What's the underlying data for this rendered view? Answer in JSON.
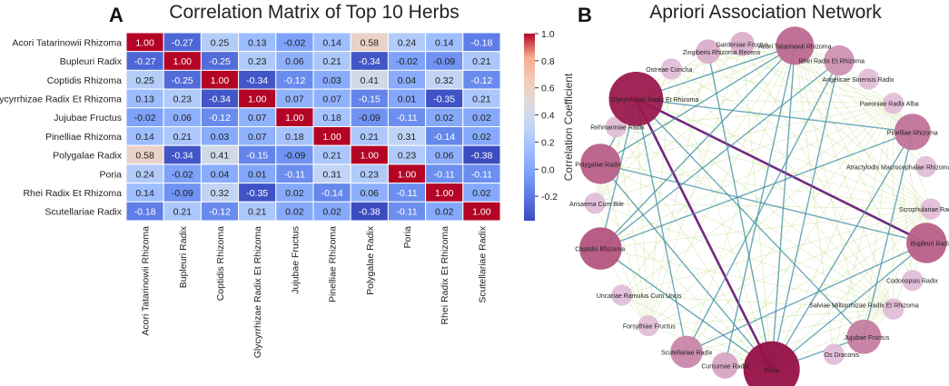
{
  "panel_a": {
    "letter": "A",
    "chart_data": {
      "type": "heatmap",
      "title": "Correlation Matrix of Top 10 Herbs",
      "labels": [
        "Acori Tatarinowii Rhizoma",
        "Bupleuri Radix",
        "Coptidis Rhizoma",
        "Glycyrrhizae Radix Et Rhizoma",
        "Jujubae Fructus",
        "Pinelliae Rhizoma",
        "Polygalae Radix",
        "Poria",
        "Rhei Radix Et Rhizoma",
        "Scutellariae Radix"
      ],
      "values": [
        [
          1.0,
          -0.27,
          0.25,
          0.13,
          -0.02,
          0.14,
          0.58,
          0.24,
          0.14,
          -0.18
        ],
        [
          -0.27,
          1.0,
          -0.25,
          0.23,
          0.06,
          0.21,
          -0.34,
          -0.02,
          -0.09,
          0.21
        ],
        [
          0.25,
          -0.25,
          1.0,
          -0.34,
          -0.12,
          0.03,
          0.41,
          0.04,
          0.32,
          -0.12
        ],
        [
          0.13,
          0.23,
          -0.34,
          1.0,
          0.07,
          0.07,
          -0.15,
          0.01,
          -0.35,
          0.21
        ],
        [
          -0.02,
          0.06,
          -0.12,
          0.07,
          1.0,
          0.18,
          -0.09,
          -0.11,
          0.02,
          0.02
        ],
        [
          0.14,
          0.21,
          0.03,
          0.07,
          0.18,
          1.0,
          0.21,
          0.31,
          -0.14,
          0.02
        ],
        [
          0.58,
          -0.34,
          0.41,
          -0.15,
          -0.09,
          0.21,
          1.0,
          0.23,
          0.06,
          -0.38
        ],
        [
          0.24,
          -0.02,
          0.04,
          0.01,
          -0.11,
          0.31,
          0.23,
          1.0,
          -0.11,
          -0.11
        ],
        [
          0.14,
          -0.09,
          0.32,
          -0.35,
          0.02,
          -0.14,
          0.06,
          -0.11,
          1.0,
          0.02
        ],
        [
          -0.18,
          0.21,
          -0.12,
          0.21,
          0.02,
          0.02,
          -0.38,
          -0.11,
          0.02,
          1.0
        ]
      ],
      "colorbar": {
        "label": "Correlation Coefficient",
        "range": [
          -0.38,
          1.0
        ],
        "ticks": [
          1.0,
          0.8,
          0.6,
          0.4,
          0.2,
          0.0,
          -0.2
        ],
        "tick_labels": [
          "1.0",
          "0.8",
          "0.6",
          "0.4",
          "0.2",
          "0.0",
          "-0.2"
        ],
        "colormap": "coolwarm"
      }
    }
  },
  "panel_b": {
    "letter": "B",
    "chart_data": {
      "type": "network",
      "title": "Apriori Association Network",
      "nodes": [
        {
          "name": "Acori Tatarinowii Rhizoma",
          "weight": 0.55
        },
        {
          "name": "Rhei Radix Et Rhizoma",
          "weight": 0.35
        },
        {
          "name": "Angelicae Sinensis Radix",
          "weight": 0.12
        },
        {
          "name": "Paeoniae Radix Alba",
          "weight": 0.12
        },
        {
          "name": "Pinelliae Rhizoma",
          "weight": 0.5
        },
        {
          "name": "Atractylodis Macrocephalae Rhizoma",
          "weight": 0.12
        },
        {
          "name": "Scrophulariae Radix",
          "weight": 0.12
        },
        {
          "name": "Bupleuri Radix",
          "weight": 0.6
        },
        {
          "name": "Codonopsis Radix",
          "weight": 0.12
        },
        {
          "name": "Salviae Miltiorrhizae Radix Et Rhizoma",
          "weight": 0.12
        },
        {
          "name": "Jujubae Fructus",
          "weight": 0.45
        },
        {
          "name": "Os Draconis",
          "weight": 0.12
        },
        {
          "name": "Poria",
          "weight": 1.0
        },
        {
          "name": "Curcumae Radix",
          "weight": 0.25
        },
        {
          "name": "Scutellariae Radix",
          "weight": 0.4
        },
        {
          "name": "Forsythiae Fructus",
          "weight": 0.12
        },
        {
          "name": "Uncariae Ramulus Cum Uncis",
          "weight": 0.12
        },
        {
          "name": "Coptidis Rhizoma",
          "weight": 0.65
        },
        {
          "name": "Arisaema Cum Bile",
          "weight": 0.12
        },
        {
          "name": "Polygalae Radix",
          "weight": 0.6
        },
        {
          "name": "Rehmanniae Radix",
          "weight": 0.12
        },
        {
          "name": "Glycyrrhizae Radix Et Rhizoma",
          "weight": 0.95
        },
        {
          "name": "Ostreae Concha",
          "weight": 0.12
        },
        {
          "name": "Zingiberis Rhizoma Recens",
          "weight": 0.2
        },
        {
          "name": "Gardeniae Fructus",
          "weight": 0.2
        }
      ],
      "strong_edges": [
        [
          "Glycyrrhizae Radix Et Rhizoma",
          "Poria"
        ],
        [
          "Glycyrrhizae Radix Et Rhizoma",
          "Bupleuri Radix"
        ],
        [
          "Acori Tatarinowii Rhizoma",
          "Polygalae Radix"
        ],
        [
          "Acori Tatarinowii Rhizoma",
          "Poria"
        ],
        [
          "Glycyrrhizae Radix Et Rhizoma",
          "Polygalae Radix"
        ],
        [
          "Glycyrrhizae Radix Et Rhizoma",
          "Coptidis Rhizoma"
        ],
        [
          "Coptidis Rhizoma",
          "Poria"
        ],
        [
          "Polygalae Radix",
          "Poria"
        ],
        [
          "Glycyrrhizae Radix Et Rhizoma",
          "Pinelliae Rhizoma"
        ],
        [
          "Bupleuri Radix",
          "Poria"
        ],
        [
          "Pinelliae Rhizoma",
          "Poria"
        ],
        [
          "Glycyrrhizae Radix Et Rhizoma",
          "Jujubae Fructus"
        ],
        [
          "Jujubae Fructus",
          "Poria"
        ],
        [
          "Rhei Radix Et Rhizoma",
          "Poria"
        ],
        [
          "Scutellariae Radix",
          "Glycyrrhizae Radix Et Rhizoma"
        ],
        [
          "Acori Tatarinowii Rhizoma",
          "Glycyrrhizae Radix Et Rhizoma"
        ],
        [
          "Bupleuri Radix",
          "Scutellariae Radix"
        ],
        [
          "Coptidis Rhizoma",
          "Acori Tatarinowii Rhizoma"
        ],
        [
          "Pinelliae Rhizoma",
          "Coptidis Rhizoma"
        ],
        [
          "Curcumae Radix",
          "Acori Tatarinowii Rhizoma"
        ],
        [
          "Rhei Radix Et Rhizoma",
          "Coptidis Rhizoma"
        ],
        [
          "Polygalae Radix",
          "Bupleuri Radix"
        ],
        [
          "Zingiberis Rhizoma Recens",
          "Poria"
        ],
        [
          "Scutellariae Radix",
          "Rhei Radix Et Rhizoma"
        ],
        [
          "Jujubae Fructus",
          "Pinelliae Rhizoma"
        ]
      ],
      "colors": {
        "heavy_edge": "#6a1e7a",
        "strong_edge": "#3f8fa6",
        "weak_edge": "#c4dc8c"
      }
    }
  }
}
